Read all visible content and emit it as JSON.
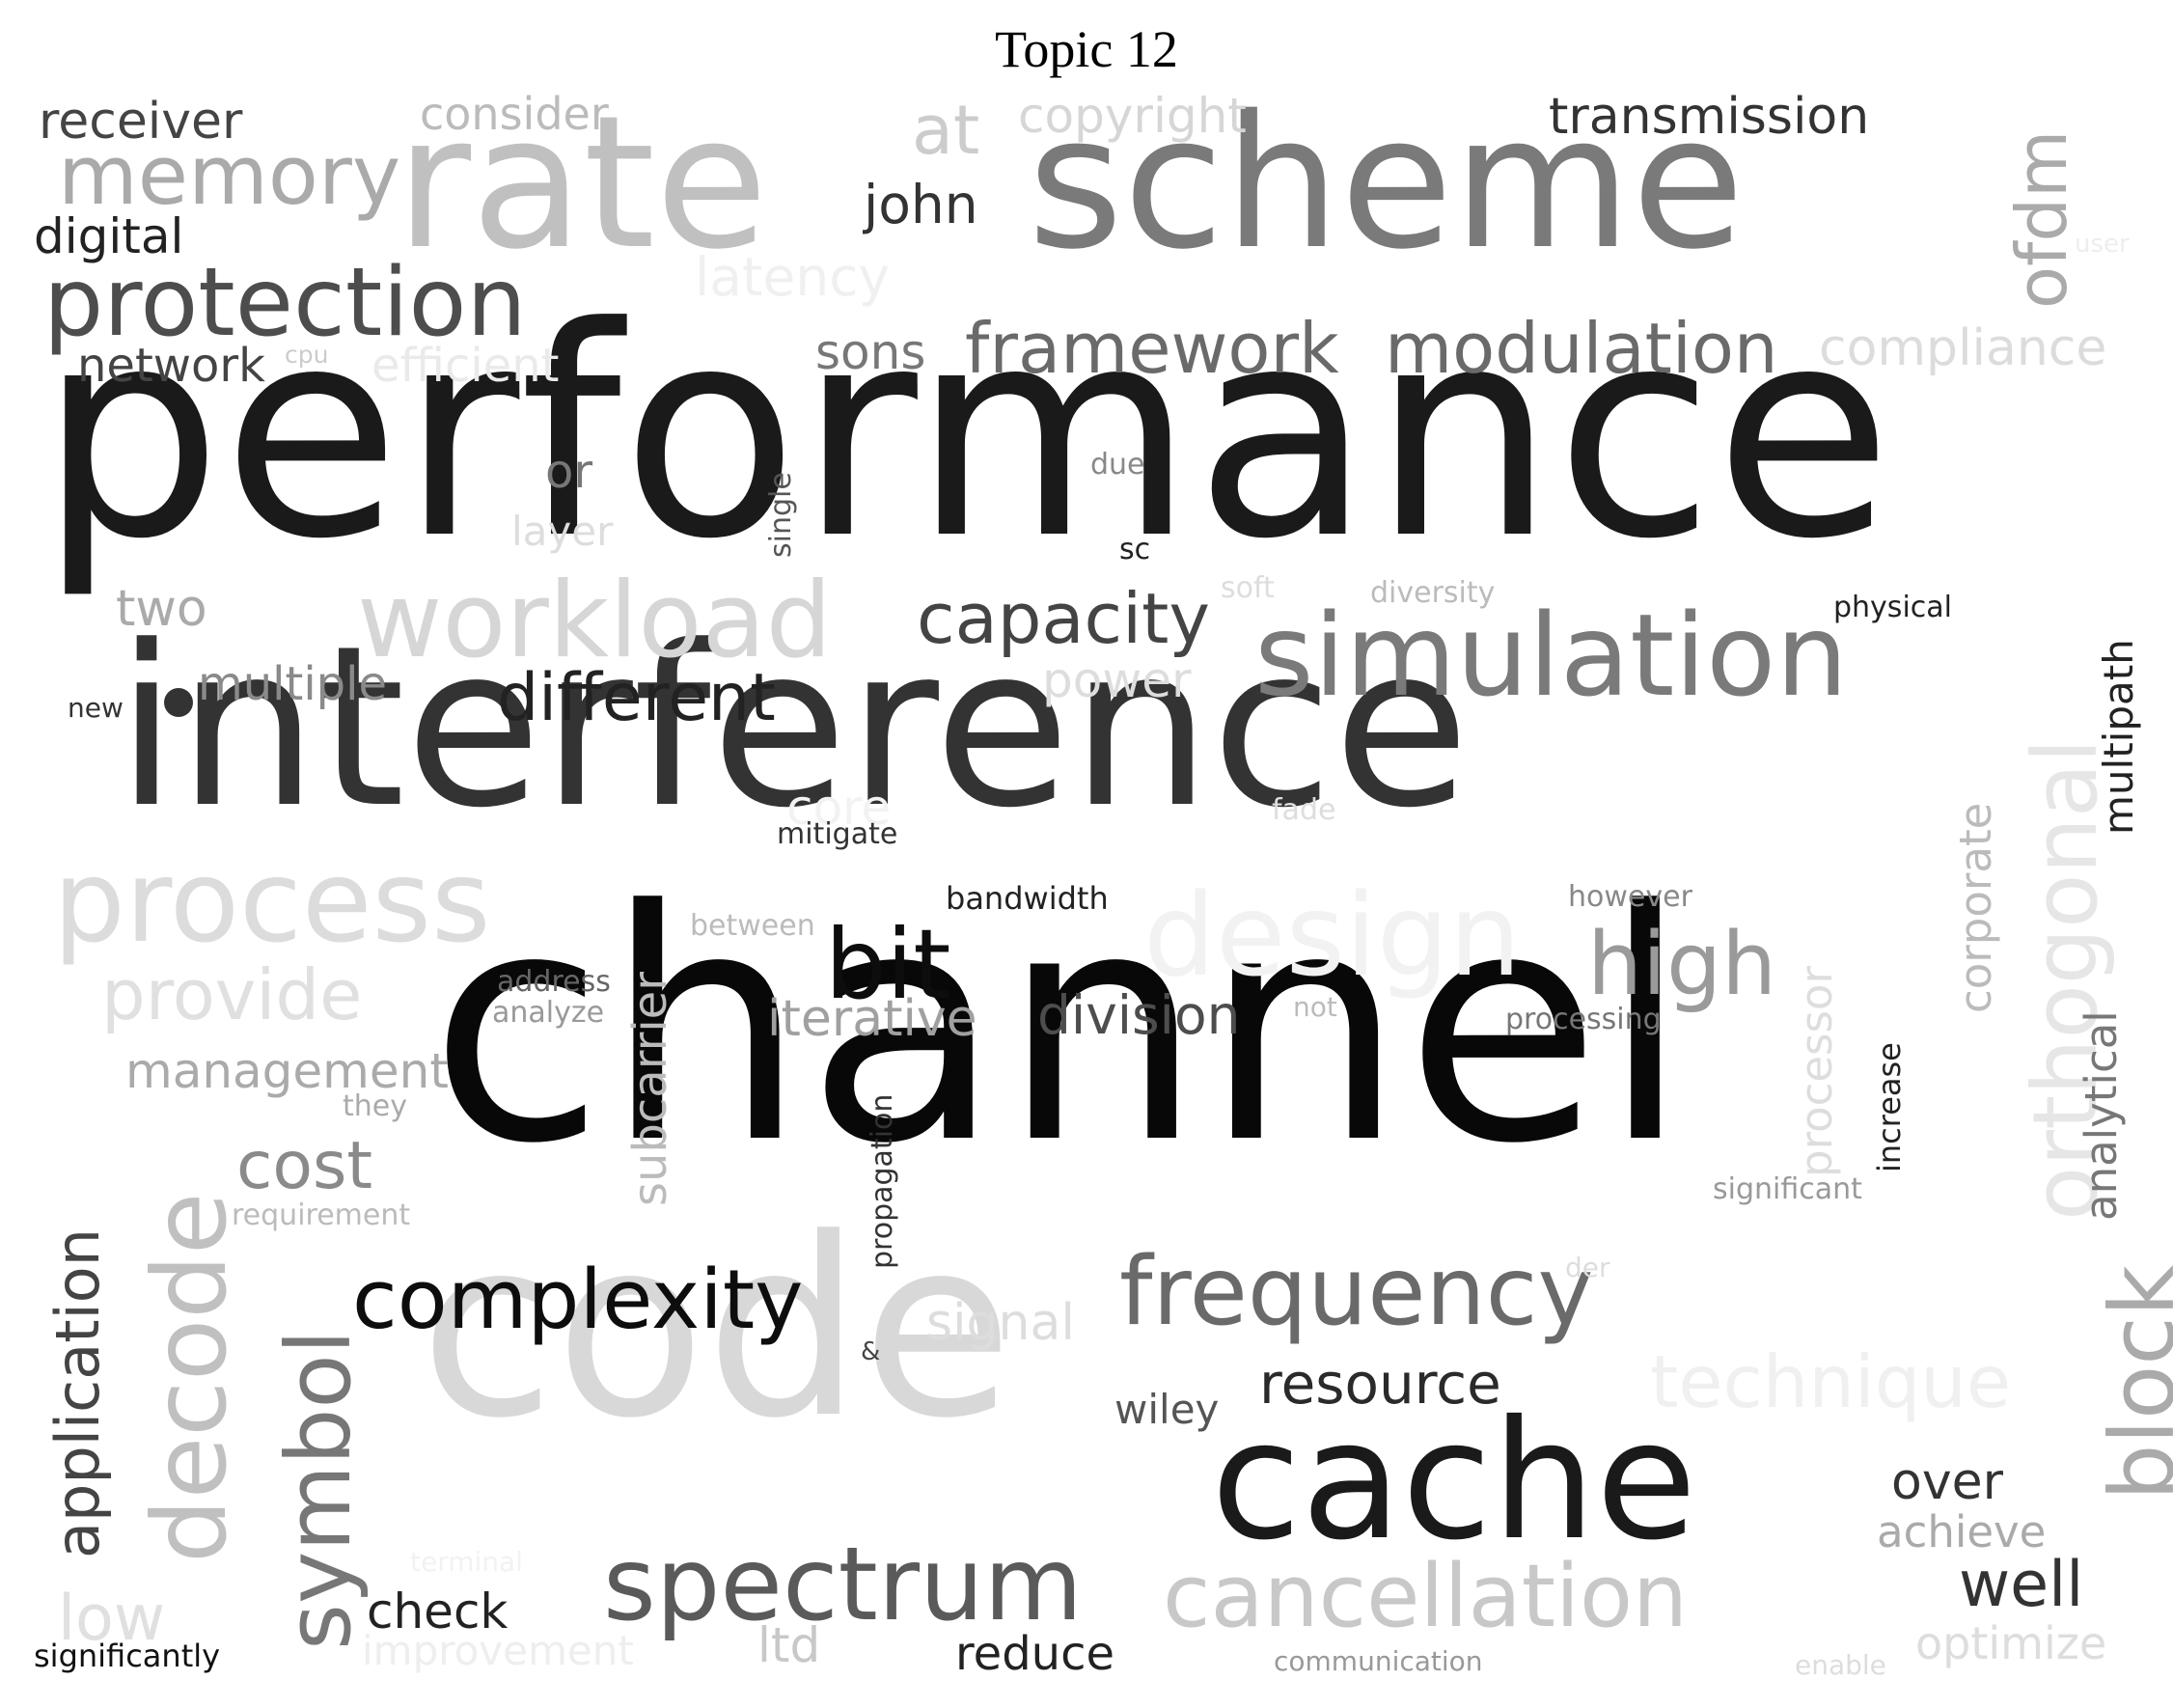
{
  "title": "Topic 12",
  "words": [
    {
      "text": "performance",
      "color": "#1a1a1a"
    },
    {
      "text": "channel",
      "color": "#080808"
    },
    {
      "text": "interference",
      "color": "#333333"
    },
    {
      "text": "code",
      "color": "#d8d8d8"
    },
    {
      "text": "scheme",
      "color": "#7a7a7a"
    },
    {
      "text": "rate",
      "color": "#c0c0c0"
    },
    {
      "text": "cache",
      "color": "#1a1a1a"
    },
    {
      "text": "simulation",
      "color": "#7a7a7a"
    },
    {
      "text": "spectrum",
      "color": "#5a5a5a"
    },
    {
      "text": "workload",
      "color": "#d6d6d6"
    },
    {
      "text": "process",
      "color": "#dcdcdc"
    },
    {
      "text": "design",
      "color": "#f2f2f2"
    },
    {
      "text": "protection",
      "color": "#4d4d4d"
    },
    {
      "text": "frequency",
      "color": "#6a6a6a"
    },
    {
      "text": "cancellation",
      "color": "#c8c8c8"
    },
    {
      "text": "complexity",
      "color": "#0d0d0d"
    },
    {
      "text": "memory",
      "color": "#aaaaaa"
    },
    {
      "text": "bit",
      "color": "#0d0d0d"
    },
    {
      "text": "high",
      "color": "#9a9a9a"
    },
    {
      "text": "technique",
      "color": "#f0f0f0"
    },
    {
      "text": "framework",
      "color": "#6a6a6a"
    },
    {
      "text": "modulation",
      "color": "#6a6a6a"
    },
    {
      "text": "capacity",
      "color": "#444444"
    },
    {
      "text": "different",
      "color": "#222222"
    },
    {
      "text": "provide",
      "color": "#e0e0e0"
    },
    {
      "text": "resource",
      "color": "#2a2a2a"
    },
    {
      "text": "division",
      "color": "#4d4d4d"
    },
    {
      "text": "transmission",
      "color": "#333333"
    },
    {
      "text": "at",
      "color": "#cccccc"
    },
    {
      "text": "compliance",
      "color": "#dcdcdc"
    },
    {
      "text": "cost",
      "color": "#8a8a8a"
    },
    {
      "text": "well",
      "color": "#333333"
    },
    {
      "text": "receiver",
      "color": "#444444"
    },
    {
      "text": "management",
      "color": "#aaaaaa"
    },
    {
      "text": "iterative",
      "color": "#a0a0a0"
    },
    {
      "text": "copyright",
      "color": "#d6d6d6"
    },
    {
      "text": "latency",
      "color": "#f0f0f0"
    },
    {
      "text": "john",
      "color": "#333333"
    },
    {
      "text": "digital",
      "color": "#222222"
    },
    {
      "text": "sons",
      "color": "#777777"
    },
    {
      "text": "network",
      "color": "#444444"
    },
    {
      "text": "efficient",
      "color": "#eaeaea"
    },
    {
      "text": "multiple",
      "color": "#8a8a8a"
    },
    {
      "text": "power",
      "color": "#dddddd"
    },
    {
      "text": "two",
      "color": "#aaaaaa"
    },
    {
      "text": "check",
      "color": "#222222"
    },
    {
      "text": "reduce",
      "color": "#222222"
    },
    {
      "text": "low",
      "color": "#e0e0e0"
    },
    {
      "text": "consider",
      "color": "#bbbbbb"
    },
    {
      "text": "over",
      "color": "#333333"
    },
    {
      "text": "achieve",
      "color": "#aaaaaa"
    },
    {
      "text": "optimize",
      "color": "#dddddd"
    },
    {
      "text": "signal",
      "color": "#dddddd"
    },
    {
      "text": "wiley",
      "color": "#555555"
    },
    {
      "text": "ltd",
      "color": "#c8c8c8"
    },
    {
      "text": "improvement",
      "color": "#eeeeee"
    },
    {
      "text": "or",
      "color": "#777777"
    },
    {
      "text": "layer",
      "color": "#dddddd"
    },
    {
      "text": "core",
      "color": "#f2f2f2"
    },
    {
      "text": "significantly",
      "color": "#111111"
    },
    {
      "text": "bandwidth",
      "color": "#222222"
    },
    {
      "text": "mitigate",
      "color": "#333333"
    },
    {
      "text": "between",
      "color": "#bbbbbb"
    },
    {
      "text": "address",
      "color": "#666666"
    },
    {
      "text": "analyze",
      "color": "#999999"
    },
    {
      "text": "processing",
      "color": "#777777"
    },
    {
      "text": "however",
      "color": "#888888"
    },
    {
      "text": "requirement",
      "color": "#bbbbbb"
    },
    {
      "text": "they",
      "color": "#aaaaaa"
    },
    {
      "text": "significant",
      "color": "#999999"
    },
    {
      "text": "communication",
      "color": "#999999"
    },
    {
      "text": "physical",
      "color": "#222222"
    },
    {
      "text": "diversity",
      "color": "#bbbbbb"
    },
    {
      "text": "soft",
      "color": "#dddddd"
    },
    {
      "text": "due",
      "color": "#888888"
    },
    {
      "text": "sc",
      "color": "#222222"
    },
    {
      "text": "new",
      "color": "#333333"
    },
    {
      "text": "not",
      "color": "#bbbbbb"
    },
    {
      "text": "fade",
      "color": "#dddddd"
    },
    {
      "text": "der",
      "color": "#dddddd"
    },
    {
      "text": "enable",
      "color": "#dddddd"
    },
    {
      "text": "terminal",
      "color": "#f2f2f2"
    },
    {
      "text": "cpu",
      "color": "#cccccc"
    },
    {
      "text": "user",
      "color": "#eeeeee"
    },
    {
      "text": "&",
      "color": "#444444"
    },
    {
      "text": "orthogonal",
      "color": "#e6e6e6"
    },
    {
      "text": "block",
      "color": "#aaaaaa"
    },
    {
      "text": "symbol",
      "color": "#777777"
    },
    {
      "text": "decode",
      "color": "#c0c0c0"
    },
    {
      "text": "application",
      "color": "#444444"
    },
    {
      "text": "ofdm",
      "color": "#aaaaaa"
    },
    {
      "text": "multipath",
      "color": "#222222"
    },
    {
      "text": "analytical",
      "color": "#777777"
    },
    {
      "text": "corporate",
      "color": "#bbbbbb"
    },
    {
      "text": "processor",
      "color": "#dddddd"
    },
    {
      "text": "subcarrier",
      "color": "#bbbbbb"
    },
    {
      "text": "propagation",
      "color": "#333333"
    },
    {
      "text": "increase",
      "color": "#222222"
    },
    {
      "text": "single",
      "color": "#555555"
    }
  ]
}
